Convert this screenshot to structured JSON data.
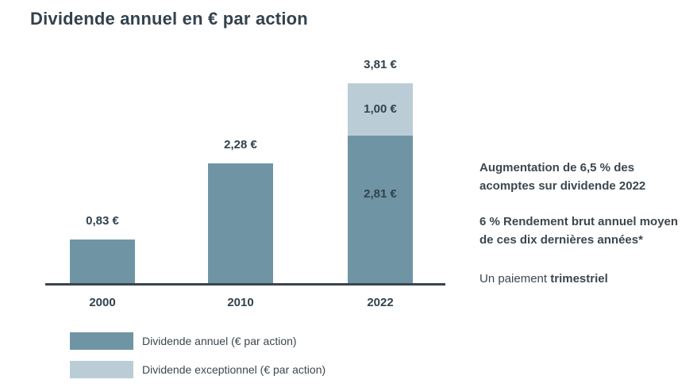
{
  "title": "Dividende annuel en € par action",
  "colors": {
    "annual_bar": "#6f95a4",
    "exceptional_bar": "#bacdd6",
    "dark_text": "#33424d",
    "note_text": "#3c474f",
    "axis": "#3a444c"
  },
  "chart_data": {
    "type": "bar",
    "stacked": true,
    "title": "Dividende annuel en € par action",
    "categories": [
      "2000",
      "2010",
      "2022"
    ],
    "series": [
      {
        "name": "Dividende annuel (€ par action)",
        "values": [
          0.83,
          2.28,
          2.81
        ],
        "color": "#6f95a4"
      },
      {
        "name": "Dividende exceptionnel (€ par action)",
        "values": [
          0,
          0,
          1.0
        ],
        "color": "#bacdd6"
      }
    ],
    "total_labels": [
      "0,83 €",
      "2,28 €",
      "3,81 €"
    ],
    "segment_labels": [
      [
        "",
        ""
      ],
      [
        "",
        ""
      ],
      [
        "2,81 €",
        "1,00 €"
      ]
    ],
    "xlabel": "",
    "ylabel": "",
    "ylim": [
      0,
      3.9
    ],
    "grid": false,
    "y_axis_visible": false,
    "legend_position": "bottom-left"
  },
  "notes": {
    "lines_bold_1": [
      "Augmentation de 6,5 % des",
      "acomptes sur dividende 2022"
    ],
    "lines_bold_2": [
      "6 % Rendement brut annuel moyen",
      "de ces dix dernières années*"
    ],
    "payment_regular": "Un paiement",
    "payment_bold": "trimestriel"
  }
}
